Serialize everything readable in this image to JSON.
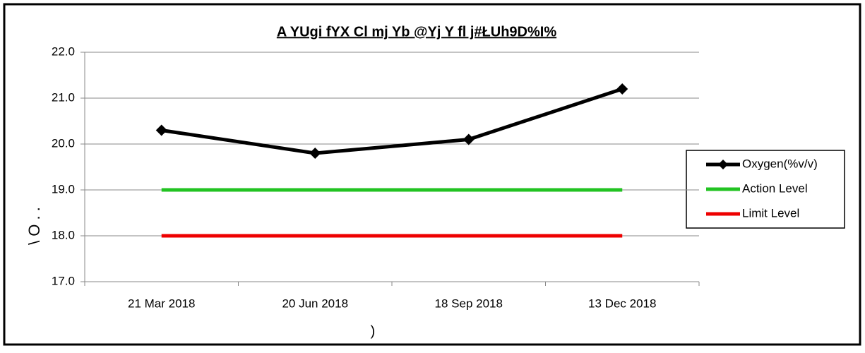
{
  "chart_data": {
    "type": "line",
    "title": "A YUgi fYX Cl mj Yb @Yj Y fl j#ŁUh9D%I%",
    "y_label": "\\ O . .",
    "x_label": ")",
    "categories": [
      "21 Mar 2018",
      "20 Jun 2018",
      "18 Sep 2018",
      "13 Dec 2018"
    ],
    "series": [
      {
        "name": "Oxygen(%v/v)",
        "color": "#000000",
        "marker": "diamond",
        "values": [
          20.3,
          19.8,
          20.1,
          21.2
        ]
      },
      {
        "name": "Action Level",
        "color": "#22c322",
        "values": [
          19,
          19,
          19,
          19
        ]
      },
      {
        "name": "Limit Level",
        "color": "#ee0000",
        "values": [
          18,
          18,
          18,
          18
        ]
      }
    ],
    "ylim": [
      17,
      22
    ],
    "yticks": [
      {
        "value": 17,
        "label": "17.0"
      },
      {
        "value": 18,
        "label": "18.0"
      },
      {
        "value": 19,
        "label": "19.0"
      },
      {
        "value": 20,
        "label": "20.0"
      },
      {
        "value": 21,
        "label": "21.0"
      },
      {
        "value": 22,
        "label": "22.0"
      }
    ],
    "grid": true,
    "legend": "right"
  }
}
